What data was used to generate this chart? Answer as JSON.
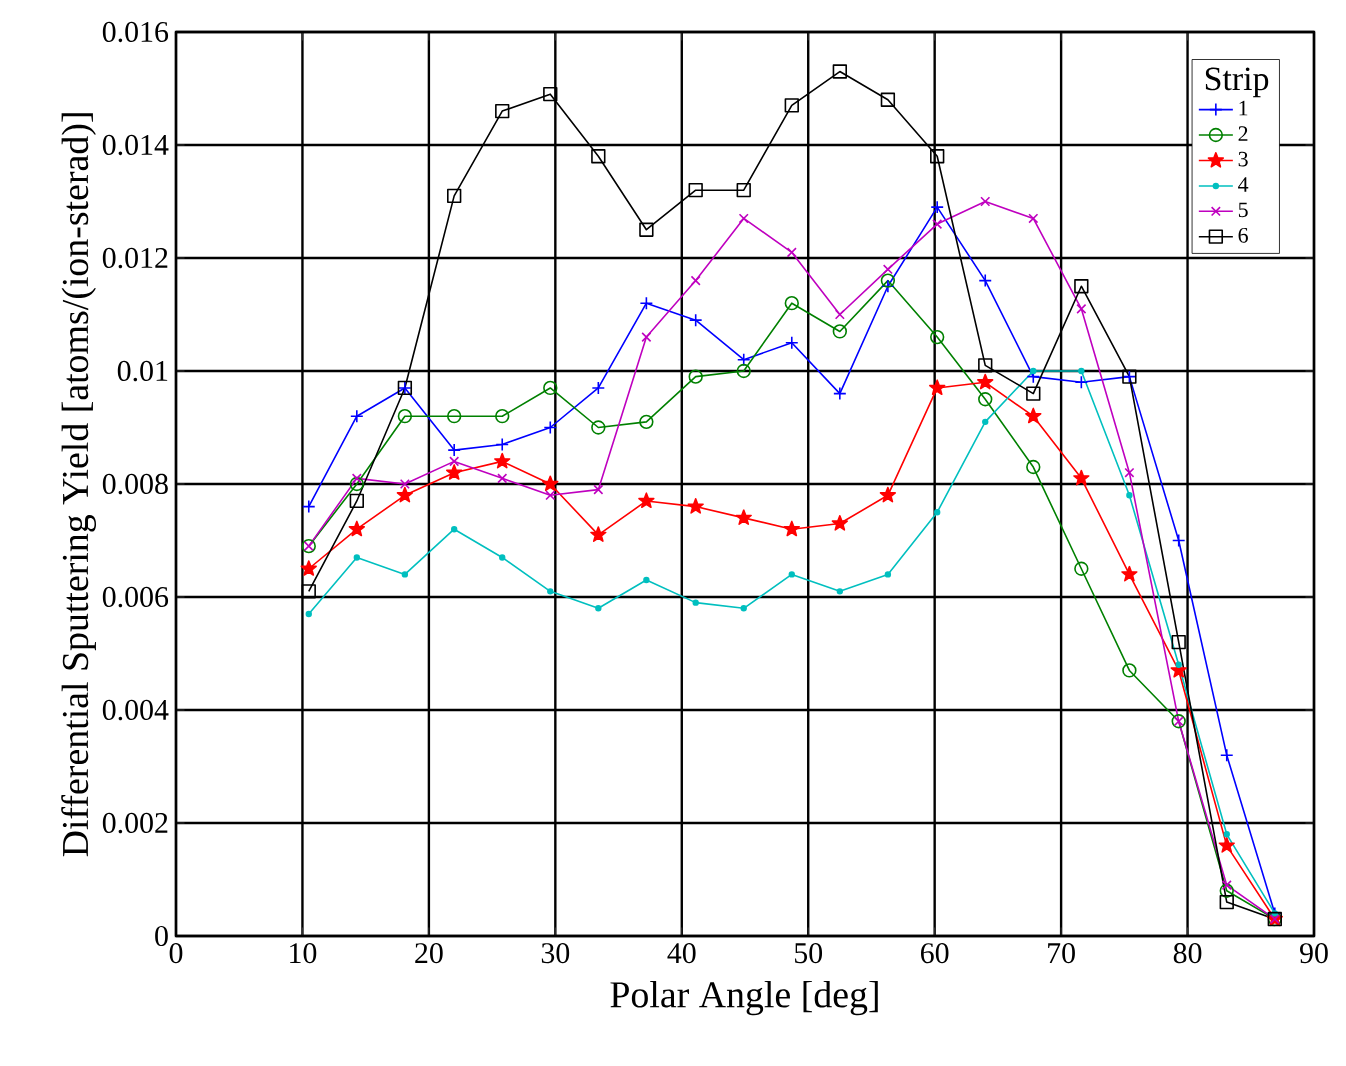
{
  "chart_data": {
    "type": "line",
    "xlabel": "Polar Angle [deg]",
    "ylabel": "Differential Sputtering Yield [atoms/(ion-sterad)]",
    "legend_title": "Strip",
    "x": [
      10.5,
      14.3,
      18.1,
      22.0,
      25.8,
      29.6,
      33.4,
      37.2,
      41.1,
      44.9,
      48.7,
      52.5,
      56.3,
      60.2,
      64.0,
      67.8,
      71.6,
      75.4,
      79.3,
      83.1,
      86.9
    ],
    "xlim": [
      0,
      90
    ],
    "xticks": [
      0,
      10,
      20,
      30,
      40,
      50,
      60,
      70,
      80,
      90
    ],
    "ylim": [
      0,
      0.016
    ],
    "yticks": [
      0,
      0.002,
      0.004,
      0.006,
      0.008,
      0.01,
      0.012,
      0.014,
      0.016
    ],
    "grid": true,
    "legend": "top right",
    "line_style": "solid",
    "series": [
      {
        "name": "1",
        "color": "#0000ff",
        "marker": "plus",
        "values": [
          0.0076,
          0.0092,
          0.0097,
          0.0086,
          0.0087,
          0.009,
          0.0097,
          0.0112,
          0.0109,
          0.0102,
          0.0105,
          0.0096,
          0.0115,
          0.0129,
          0.0116,
          0.0099,
          0.0098,
          0.0099,
          0.007,
          0.0032,
          0.0004
        ]
      },
      {
        "name": "2",
        "color": "#008000",
        "marker": "circle",
        "values": [
          0.0069,
          0.008,
          0.0092,
          0.0092,
          0.0092,
          0.0097,
          0.009,
          0.0091,
          0.0099,
          0.01,
          0.0112,
          0.0107,
          0.0116,
          0.0106,
          0.0095,
          0.0083,
          0.0065,
          0.0047,
          0.0038,
          0.0008,
          0.0003
        ]
      },
      {
        "name": "3",
        "color": "#ff0000",
        "marker": "star",
        "values": [
          0.0065,
          0.0072,
          0.0078,
          0.0082,
          0.0084,
          0.008,
          0.0071,
          0.0077,
          0.0076,
          0.0074,
          0.0072,
          0.0073,
          0.0078,
          0.0097,
          0.0098,
          0.0092,
          0.0081,
          0.0064,
          0.0047,
          0.0016,
          0.0003
        ]
      },
      {
        "name": "4",
        "color": "#00bfbf",
        "marker": "dot",
        "values": [
          0.0057,
          0.0067,
          0.0064,
          0.0072,
          0.0067,
          0.0061,
          0.0058,
          0.0063,
          0.0059,
          0.0058,
          0.0064,
          0.0061,
          0.0064,
          0.0075,
          0.0091,
          0.01,
          0.01,
          0.0078,
          0.0048,
          0.0018,
          0.0004
        ]
      },
      {
        "name": "5",
        "color": "#bf00bf",
        "marker": "cross",
        "values": [
          0.0069,
          0.0081,
          0.008,
          0.0084,
          0.0081,
          0.0078,
          0.0079,
          0.0106,
          0.0116,
          0.0127,
          0.0121,
          0.011,
          0.0118,
          0.0126,
          0.013,
          0.0127,
          0.0111,
          0.0082,
          0.0038,
          0.0009,
          0.0003
        ]
      },
      {
        "name": "6",
        "color": "#000000",
        "marker": "square",
        "values": [
          0.0061,
          0.0077,
          0.0097,
          0.0131,
          0.0146,
          0.0149,
          0.0138,
          0.0125,
          0.0132,
          0.0132,
          0.0147,
          0.0153,
          0.0148,
          0.0138,
          0.0101,
          0.0096,
          0.0115,
          0.0099,
          0.0052,
          0.0006,
          0.0003
        ]
      }
    ]
  }
}
